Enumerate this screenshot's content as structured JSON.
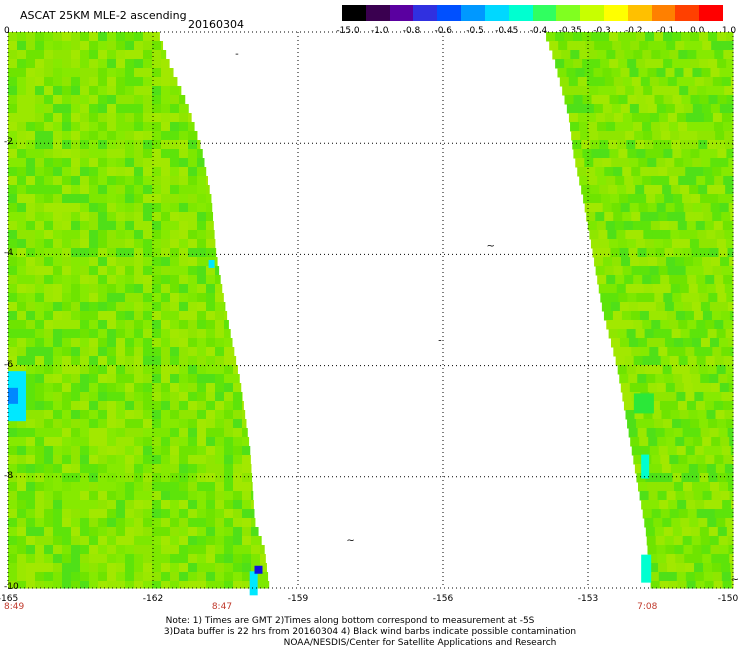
{
  "header": {
    "title": "ASCAT 25KM MLE-2 ascending",
    "date": "20160304"
  },
  "colorbar": {
    "labels": [
      "-15.0",
      "-1.0",
      "-0.8",
      "-0.6",
      "-0.5",
      "-0.45",
      "-0.4",
      "-0.35",
      "-0.3",
      "-0.2",
      "-0.1",
      "0.0",
      "1.0"
    ],
    "colors": [
      "#000000",
      "#3a0050",
      "#5a00a0",
      "#3030e0",
      "#0050ff",
      "#0098ff",
      "#00d8ff",
      "#00ffd0",
      "#30ff60",
      "#80ff20",
      "#c8ff00",
      "#ffff00",
      "#ffc000",
      "#ff8000",
      "#ff4000",
      "#ff0000"
    ]
  },
  "map": {
    "x_ticks": [
      "-165",
      "-162",
      "-159",
      "-156",
      "-153",
      "-150"
    ],
    "y_ticks": [
      "0",
      "-2",
      "-4",
      "-6",
      "-8",
      "-10"
    ],
    "x_range": [
      -165,
      -150
    ],
    "y_range": [
      -10,
      0
    ],
    "times": [
      {
        "label": "8:49",
        "lon": -165
      },
      {
        "label": "8:47",
        "lon": -160.7
      },
      {
        "label": "7:08",
        "lon": -151.9
      }
    ],
    "swaths": [
      {
        "name": "left-swath",
        "edge": [
          [
            0,
            -161.9
          ],
          [
            -0.5,
            -161.7
          ],
          [
            -1.3,
            -161.3
          ],
          [
            -2.1,
            -161.0
          ],
          [
            -3.0,
            -160.8
          ],
          [
            -4.0,
            -160.7
          ],
          [
            -5.0,
            -160.5
          ],
          [
            -6.3,
            -160.2
          ],
          [
            -7.5,
            -160.0
          ],
          [
            -8.8,
            -159.9
          ],
          [
            -9.3,
            -159.7
          ],
          [
            -10,
            -159.6
          ]
        ]
      },
      {
        "name": "right-swath",
        "edge": [
          [
            0,
            -153.9
          ],
          [
            -0.5,
            -153.7
          ],
          [
            -1.5,
            -153.4
          ],
          [
            -2.2,
            -153.3
          ],
          [
            -3.0,
            -153.1
          ],
          [
            -4.0,
            -152.9
          ],
          [
            -5.0,
            -152.7
          ],
          [
            -6.0,
            -152.4
          ],
          [
            -7.0,
            -152.2
          ],
          [
            -8.0,
            -152.0
          ],
          [
            -9.0,
            -151.8
          ],
          [
            -10,
            -151.7
          ]
        ]
      }
    ]
  },
  "notes": {
    "line1": "Note: 1) Times are GMT 2)Times along bottom correspond to measurement at -5S",
    "line2": "3)Data buffer is 22 hrs from 20160304 4) Black wind barbs indicate possible contamination",
    "line3": "NOAA/NESDIS/Center for Satellite Applications and Research"
  }
}
